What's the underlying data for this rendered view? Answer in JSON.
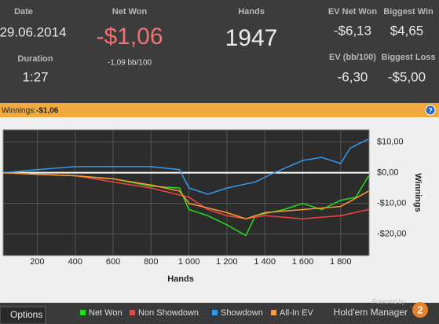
{
  "header": {
    "date_label": "Date",
    "date": "29.06.2014",
    "duration_label": "Duration",
    "duration": "1:27",
    "net_won_label": "Net Won",
    "net_won": "-$1,06",
    "bb100": "-1,09 bb/100",
    "hands_label": "Hands",
    "hands": "1947",
    "ev_net_won_label": "EV Net Won",
    "ev_net_won": "-$6,13",
    "biggest_win_label": "Biggest Win",
    "biggest_win": "$4,65",
    "ev_bb_label": "EV (bb/100)",
    "ev_bb": "-6,30",
    "biggest_loss_label": "Biggest Loss",
    "biggest_loss": "-$5,00"
  },
  "bar": {
    "label": "Winnings:",
    "value": "-$1,06",
    "help": "?"
  },
  "footer": {
    "options": "Options",
    "powered_by": "Powered by",
    "brand": "Hold'em Manager",
    "brand_badge": "2"
  },
  "chart_data": {
    "type": "line",
    "xlabel": "Hands",
    "ylabel": "Winnings",
    "xlim": [
      20,
      1950
    ],
    "ylim": [
      -27,
      14
    ],
    "xticks": [
      200,
      400,
      600,
      800,
      {
        "value": 1000,
        "label": "1 000"
      },
      {
        "value": 1200,
        "label": "1 200"
      },
      {
        "value": 1400,
        "label": "1 400"
      },
      {
        "value": 1600,
        "label": "1 600"
      },
      {
        "value": 1800,
        "label": "1 800"
      }
    ],
    "yticks": [
      {
        "value": 10,
        "label": "$10,00"
      },
      {
        "value": 0,
        "label": "$0,00"
      },
      {
        "value": -10,
        "label": "-$10,00"
      },
      {
        "value": -20,
        "label": "-$20,00"
      }
    ],
    "grid": true,
    "series": [
      {
        "name": "Net Won",
        "color": "#22dd22",
        "x": [
          20,
          200,
          400,
          600,
          800,
          950,
          1000,
          1100,
          1200,
          1300,
          1350,
          1500,
          1600,
          1700,
          1800,
          1880,
          1947
        ],
        "values": [
          0,
          -0.5,
          -1,
          -2,
          -4.4,
          -5,
          -12,
          -14,
          -17,
          -20.5,
          -14,
          -12,
          -10,
          -12,
          -9,
          -8,
          -1.06
        ]
      },
      {
        "name": "Non Showdown",
        "color": "#ee4444",
        "x": [
          20,
          200,
          400,
          600,
          800,
          1000,
          1100,
          1200,
          1300,
          1400,
          1600,
          1800,
          1947
        ],
        "values": [
          0,
          -0.5,
          -1,
          -3,
          -5,
          -8,
          -12,
          -14,
          -15,
          -14,
          -15,
          -14,
          -12
        ]
      },
      {
        "name": "Showdown",
        "color": "#3399ee",
        "x": [
          20,
          200,
          400,
          600,
          800,
          950,
          1000,
          1100,
          1200,
          1350,
          1450,
          1600,
          1700,
          1800,
          1850,
          1947
        ],
        "values": [
          0,
          1,
          2,
          2,
          2,
          1,
          -5,
          -7,
          -5,
          -3,
          0,
          4,
          5,
          3,
          8,
          11
        ]
      },
      {
        "name": "All-In EV",
        "color": "#ff9933",
        "x": [
          20,
          200,
          400,
          600,
          800,
          950,
          1000,
          1200,
          1300,
          1400,
          1600,
          1800,
          1947
        ],
        "values": [
          0,
          -0.5,
          -1,
          -2,
          -4,
          -6,
          -10,
          -13,
          -15,
          -13,
          -12,
          -11,
          -6
        ]
      }
    ]
  }
}
